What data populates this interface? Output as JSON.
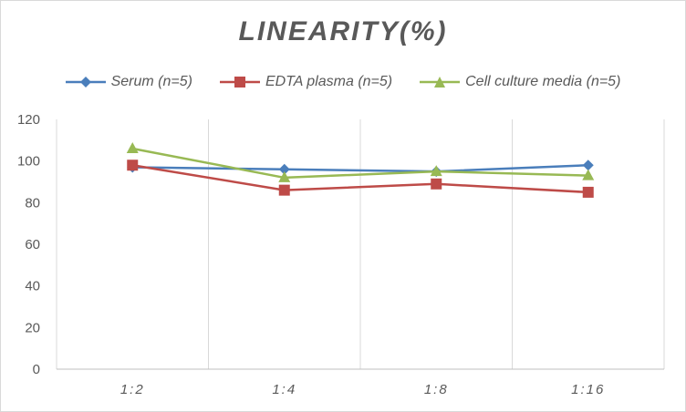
{
  "chart_data": {
    "type": "line",
    "title": "LINEARITY(%)",
    "xlabel": "",
    "ylabel": "",
    "categories": [
      "1:2",
      "1:4",
      "1:8",
      "1:16"
    ],
    "ylim": [
      0,
      120
    ],
    "yticks": [
      0,
      20,
      40,
      60,
      80,
      100,
      120
    ],
    "grid": "vertical",
    "legend_position": "top",
    "series": [
      {
        "name": "Serum (n=5)",
        "values": [
          97,
          96,
          95,
          98
        ],
        "color": "#4a7ebb",
        "marker": "diamond"
      },
      {
        "name": "EDTA plasma (n=5)",
        "values": [
          98,
          86,
          89,
          85
        ],
        "color": "#be4b48",
        "marker": "square"
      },
      {
        "name": "Cell culture media (n=5)",
        "values": [
          106,
          92,
          95,
          93
        ],
        "color": "#98b954",
        "marker": "triangle"
      }
    ]
  }
}
